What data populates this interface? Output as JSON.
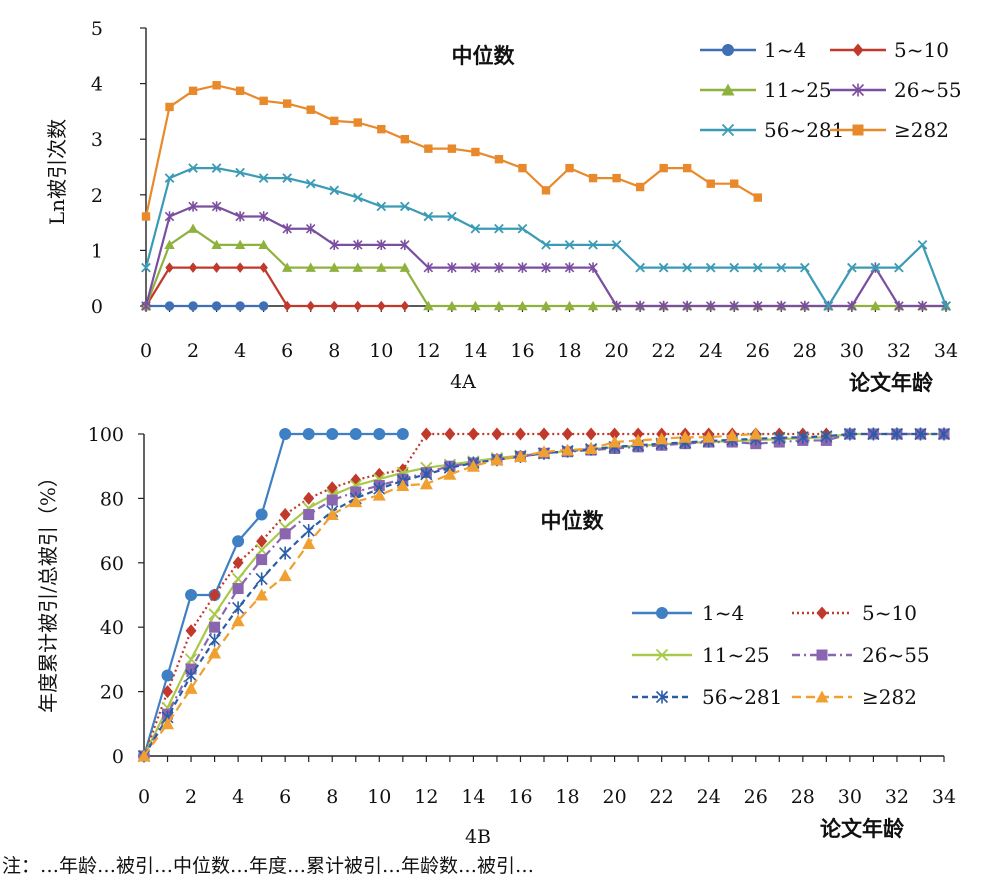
{
  "chart_data": [
    {
      "id": "4A",
      "type": "line",
      "caption": "4A",
      "title": "中位数",
      "xlabel": "论文年龄",
      "ylabel": "Ln被引次数",
      "xlim": [
        0,
        34
      ],
      "ylim": [
        0,
        5
      ],
      "xticks": [
        "0",
        "2",
        "4",
        "6",
        "8",
        "10",
        "12",
        "14",
        "16",
        "18",
        "20",
        "22",
        "24",
        "26",
        "28",
        "30",
        "32",
        "34"
      ],
      "yticks": [
        "0",
        "1",
        "2",
        "3",
        "4",
        "5"
      ],
      "grid": false,
      "legend_position": "top-right",
      "series": [
        {
          "name": "1~4",
          "color": "#3f6fb4",
          "marker": "circle",
          "x": [
            0,
            1,
            2,
            3,
            4,
            5
          ],
          "values": [
            0,
            0,
            0,
            0,
            0,
            0
          ]
        },
        {
          "name": "5~10",
          "color": "#c0392b",
          "marker": "diamond",
          "x": [
            0,
            1,
            2,
            3,
            4,
            5,
            6,
            7,
            8,
            9,
            10,
            11
          ],
          "values": [
            0,
            0.69,
            0.69,
            0.69,
            0.69,
            0.69,
            0,
            0,
            0,
            0,
            0,
            0
          ]
        },
        {
          "name": "11~25",
          "color": "#8fb23f",
          "marker": "triangle",
          "x": [
            0,
            1,
            2,
            3,
            4,
            5,
            6,
            7,
            8,
            9,
            10,
            11,
            12,
            13,
            14,
            15,
            16,
            17,
            18,
            19,
            20,
            21,
            22,
            23,
            24,
            25,
            26,
            27,
            28,
            29,
            30,
            31,
            32,
            33,
            34
          ],
          "values": [
            0,
            1.1,
            1.39,
            1.1,
            1.1,
            1.1,
            0.69,
            0.69,
            0.69,
            0.69,
            0.69,
            0.69,
            0,
            0,
            0,
            0,
            0,
            0,
            0,
            0,
            0,
            0,
            0,
            0,
            0,
            0,
            0,
            0,
            0,
            0,
            0,
            0,
            0,
            0,
            0
          ]
        },
        {
          "name": "26~55",
          "color": "#7b4fa0",
          "marker": "star",
          "x": [
            0,
            1,
            2,
            3,
            4,
            5,
            6,
            7,
            8,
            9,
            10,
            11,
            12,
            13,
            14,
            15,
            16,
            17,
            18,
            19,
            20,
            21,
            22,
            23,
            24,
            25,
            26,
            27,
            28,
            29,
            30,
            31,
            32,
            33,
            34
          ],
          "values": [
            0,
            1.61,
            1.79,
            1.79,
            1.61,
            1.61,
            1.39,
            1.39,
            1.1,
            1.1,
            1.1,
            1.1,
            0.69,
            0.69,
            0.69,
            0.69,
            0.69,
            0.69,
            0.69,
            0.69,
            0,
            0,
            0,
            0,
            0,
            0,
            0,
            0,
            0,
            0,
            0,
            0.69,
            0,
            0,
            0
          ]
        },
        {
          "name": "56~281",
          "color": "#3b9bb5",
          "marker": "x",
          "x": [
            0,
            1,
            2,
            3,
            4,
            5,
            6,
            7,
            8,
            9,
            10,
            11,
            12,
            13,
            14,
            15,
            16,
            17,
            18,
            19,
            20,
            21,
            22,
            23,
            24,
            25,
            26,
            27,
            28,
            29,
            30,
            31,
            32,
            33,
            34
          ],
          "values": [
            0.69,
            2.3,
            2.48,
            2.48,
            2.4,
            2.3,
            2.3,
            2.2,
            2.08,
            1.95,
            1.79,
            1.79,
            1.61,
            1.61,
            1.39,
            1.39,
            1.39,
            1.1,
            1.1,
            1.1,
            1.1,
            0.69,
            0.69,
            0.69,
            0.69,
            0.69,
            0.69,
            0.69,
            0.69,
            0,
            0.69,
            0.69,
            0.69,
            1.1,
            0
          ]
        },
        {
          "name": "≥282",
          "color": "#e8892b",
          "marker": "square",
          "x": [
            0,
            1,
            2,
            3,
            4,
            5,
            6,
            7,
            8,
            9,
            10,
            11,
            12,
            13,
            14,
            15,
            16,
            17,
            18,
            19,
            20,
            21,
            22,
            23,
            24,
            25,
            26
          ],
          "values": [
            1.61,
            3.58,
            3.87,
            3.97,
            3.87,
            3.69,
            3.64,
            3.53,
            3.33,
            3.3,
            3.18,
            3.0,
            2.83,
            2.83,
            2.77,
            2.64,
            2.48,
            2.08,
            2.48,
            2.3,
            2.3,
            2.14,
            2.48,
            2.48,
            2.2,
            2.2,
            1.95
          ]
        }
      ]
    },
    {
      "id": "4B",
      "type": "line",
      "caption": "4B",
      "title": "中位数",
      "xlabel": "论文年龄",
      "ylabel": "年度累计被引/总被引（%）",
      "xlim": [
        0,
        34
      ],
      "ylim": [
        0,
        100
      ],
      "xticks": [
        "0",
        "2",
        "4",
        "6",
        "8",
        "10",
        "12",
        "14",
        "16",
        "18",
        "20",
        "22",
        "24",
        "26",
        "28",
        "30",
        "32",
        "34"
      ],
      "yticks": [
        "0",
        "20",
        "40",
        "60",
        "80",
        "100"
      ],
      "grid": false,
      "legend_position": "bottom-right",
      "series": [
        {
          "name": "1~4",
          "color": "#3f7fc4",
          "marker": "circle",
          "dash": "",
          "x": [
            0,
            1,
            2,
            3,
            4,
            5,
            6,
            7,
            8,
            9,
            10,
            11
          ],
          "values": [
            0,
            25,
            50,
            50,
            66.7,
            75,
            100,
            100,
            100,
            100,
            100,
            100
          ]
        },
        {
          "name": "5~10",
          "color": "#c0392b",
          "marker": "diamond",
          "dash": "2,3",
          "x": [
            0,
            1,
            2,
            3,
            4,
            5,
            6,
            7,
            8,
            9,
            10,
            11,
            12,
            13,
            14,
            15,
            16,
            17,
            18,
            19,
            20,
            21,
            22,
            23,
            24,
            25,
            26,
            27,
            28,
            29
          ],
          "values": [
            0,
            20,
            38.9,
            50,
            60,
            66.7,
            75,
            80,
            83.3,
            85.7,
            87.5,
            88.9,
            100,
            100,
            100,
            100,
            100,
            100,
            100,
            100,
            100,
            100,
            100,
            100,
            100,
            100,
            100,
            100,
            100,
            100
          ]
        },
        {
          "name": "11~25",
          "color": "#a8c94a",
          "marker": "x",
          "dash": "",
          "x": [
            0,
            1,
            2,
            3,
            4,
            5,
            6,
            7,
            8,
            9,
            10,
            11,
            12,
            13,
            14,
            15,
            16,
            17,
            18,
            19,
            20,
            21,
            22,
            23,
            24,
            25,
            26,
            27,
            28,
            29,
            30,
            31,
            32,
            33,
            34
          ],
          "values": [
            0,
            15,
            30,
            44,
            55,
            64,
            71,
            77,
            81,
            84,
            86,
            88,
            89.5,
            90.5,
            91.5,
            92.5,
            93.3,
            94,
            94.7,
            95.3,
            95.9,
            96.3,
            96.8,
            97.2,
            97.5,
            97.8,
            98.1,
            98.4,
            98.7,
            99,
            100,
            100,
            100,
            100,
            100
          ]
        },
        {
          "name": "26~55",
          "color": "#8b66b0",
          "marker": "square",
          "dash": "8,4,2,4",
          "x": [
            0,
            1,
            2,
            3,
            4,
            5,
            6,
            7,
            8,
            9,
            10,
            11,
            12,
            13,
            14,
            15,
            16,
            17,
            18,
            19,
            20,
            21,
            22,
            23,
            24,
            25,
            26,
            27,
            28,
            29,
            30,
            31,
            32,
            33,
            34
          ],
          "values": [
            0,
            13,
            27,
            40,
            52,
            61,
            69,
            75,
            79.5,
            82,
            84,
            86,
            88,
            90,
            91,
            92,
            93,
            94,
            94.5,
            95,
            95.5,
            96,
            96.5,
            97,
            97.5,
            97.5,
            97,
            97.5,
            98,
            98,
            100,
            100,
            100,
            100,
            100
          ]
        },
        {
          "name": "56~281",
          "color": "#2a5ca8",
          "marker": "star",
          "dash": "6,4",
          "x": [
            0,
            1,
            2,
            3,
            4,
            5,
            6,
            7,
            8,
            9,
            10,
            11,
            12,
            13,
            14,
            15,
            16,
            17,
            18,
            19,
            20,
            21,
            22,
            23,
            24,
            25,
            26,
            27,
            28,
            29,
            30,
            31,
            32,
            33,
            34
          ],
          "values": [
            0,
            12,
            25,
            36,
            46,
            55,
            63,
            70,
            76,
            80,
            83,
            85.5,
            87.5,
            89.5,
            91,
            92,
            93,
            94,
            94.7,
            95.3,
            96,
            96.5,
            97,
            97.4,
            97.8,
            98.2,
            98.5,
            98.8,
            99,
            99.3,
            100,
            100,
            100,
            100,
            100
          ]
        },
        {
          "name": "≥282",
          "color": "#f0a030",
          "marker": "triangle",
          "dash": "9,5",
          "x": [
            0,
            1,
            2,
            3,
            4,
            5,
            6,
            7,
            8,
            9,
            10,
            11,
            12,
            13,
            14,
            15,
            16,
            17,
            18,
            19,
            20,
            21,
            22,
            23,
            24,
            25,
            26
          ],
          "values": [
            0,
            10,
            21,
            32,
            42,
            50,
            56,
            66,
            75,
            79,
            81,
            84,
            84.5,
            87.5,
            90,
            92,
            93,
            94.5,
            95,
            95.5,
            97.5,
            98,
            98.5,
            99,
            99,
            99.5,
            100
          ]
        }
      ]
    }
  ],
  "bottom_caption_fragment": "注：…年龄…被引…中位数…年度…累计被引…年龄数…被引…"
}
